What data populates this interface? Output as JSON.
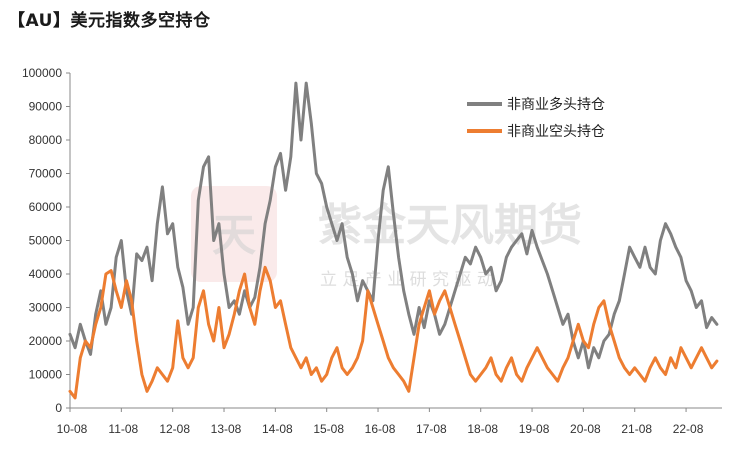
{
  "title": "【AU】美元指数多空持仓",
  "watermark": {
    "logo_text": "天",
    "company": "紫金天风期货",
    "slogan": "立 足 产 业   研 究 驱 动"
  },
  "colors": {
    "long": "#808080",
    "short": "#ED7D31",
    "axis": "#888888"
  },
  "chart_data": {
    "type": "line",
    "title": "【AU】美元指数多空持仓",
    "xlabel": "",
    "ylabel": "",
    "ylim": [
      0,
      100000
    ],
    "y_ticks": [
      0,
      10000,
      20000,
      30000,
      40000,
      50000,
      60000,
      70000,
      80000,
      90000,
      100000
    ],
    "x_ticks": [
      "10-08",
      "11-08",
      "12-08",
      "13-08",
      "14-08",
      "15-08",
      "16-08",
      "17-08",
      "18-08",
      "19-08",
      "20-08",
      "21-08",
      "22-08"
    ],
    "xlim": [
      2010.6,
      2023.3
    ],
    "grid": false,
    "legend_position": "top-right",
    "series": [
      {
        "name": "非商业多头持仓",
        "color": "#808080",
        "points": [
          [
            2010.6,
            22000
          ],
          [
            2010.7,
            18000
          ],
          [
            2010.8,
            25000
          ],
          [
            2010.9,
            20000
          ],
          [
            2011.0,
            16000
          ],
          [
            2011.1,
            28000
          ],
          [
            2011.2,
            35000
          ],
          [
            2011.3,
            25000
          ],
          [
            2011.4,
            30000
          ],
          [
            2011.5,
            45000
          ],
          [
            2011.6,
            50000
          ],
          [
            2011.7,
            35000
          ],
          [
            2011.8,
            28000
          ],
          [
            2011.9,
            46000
          ],
          [
            2012.0,
            44000
          ],
          [
            2012.1,
            48000
          ],
          [
            2012.2,
            38000
          ],
          [
            2012.3,
            55000
          ],
          [
            2012.4,
            66000
          ],
          [
            2012.5,
            52000
          ],
          [
            2012.6,
            55000
          ],
          [
            2012.7,
            42000
          ],
          [
            2012.8,
            36000
          ],
          [
            2012.9,
            25000
          ],
          [
            2013.0,
            30000
          ],
          [
            2013.1,
            62000
          ],
          [
            2013.2,
            72000
          ],
          [
            2013.3,
            75000
          ],
          [
            2013.4,
            50000
          ],
          [
            2013.5,
            55000
          ],
          [
            2013.6,
            40000
          ],
          [
            2013.7,
            30000
          ],
          [
            2013.8,
            32000
          ],
          [
            2013.9,
            28000
          ],
          [
            2014.0,
            35000
          ],
          [
            2014.1,
            30000
          ],
          [
            2014.2,
            33000
          ],
          [
            2014.3,
            42000
          ],
          [
            2014.4,
            55000
          ],
          [
            2014.5,
            62000
          ],
          [
            2014.6,
            72000
          ],
          [
            2014.7,
            76000
          ],
          [
            2014.8,
            65000
          ],
          [
            2014.9,
            75000
          ],
          [
            2015.0,
            97000
          ],
          [
            2015.1,
            80000
          ],
          [
            2015.2,
            97000
          ],
          [
            2015.3,
            85000
          ],
          [
            2015.4,
            70000
          ],
          [
            2015.5,
            67000
          ],
          [
            2015.6,
            60000
          ],
          [
            2015.7,
            55000
          ],
          [
            2015.8,
            50000
          ],
          [
            2015.9,
            55000
          ],
          [
            2016.0,
            45000
          ],
          [
            2016.1,
            40000
          ],
          [
            2016.2,
            32000
          ],
          [
            2016.3,
            38000
          ],
          [
            2016.4,
            35000
          ],
          [
            2016.5,
            32000
          ],
          [
            2016.6,
            50000
          ],
          [
            2016.7,
            65000
          ],
          [
            2016.8,
            72000
          ],
          [
            2016.9,
            58000
          ],
          [
            2017.0,
            45000
          ],
          [
            2017.1,
            35000
          ],
          [
            2017.2,
            28000
          ],
          [
            2017.3,
            22000
          ],
          [
            2017.4,
            30000
          ],
          [
            2017.5,
            24000
          ],
          [
            2017.6,
            32000
          ],
          [
            2017.7,
            28000
          ],
          [
            2017.8,
            22000
          ],
          [
            2017.9,
            25000
          ],
          [
            2018.0,
            30000
          ],
          [
            2018.1,
            35000
          ],
          [
            2018.2,
            40000
          ],
          [
            2018.3,
            45000
          ],
          [
            2018.4,
            43000
          ],
          [
            2018.5,
            48000
          ],
          [
            2018.6,
            45000
          ],
          [
            2018.7,
            40000
          ],
          [
            2018.8,
            42000
          ],
          [
            2018.9,
            35000
          ],
          [
            2019.0,
            38000
          ],
          [
            2019.1,
            45000
          ],
          [
            2019.2,
            48000
          ],
          [
            2019.3,
            50000
          ],
          [
            2019.4,
            52000
          ],
          [
            2019.5,
            46000
          ],
          [
            2019.6,
            53000
          ],
          [
            2019.7,
            48000
          ],
          [
            2019.8,
            44000
          ],
          [
            2019.9,
            40000
          ],
          [
            2020.0,
            35000
          ],
          [
            2020.1,
            30000
          ],
          [
            2020.2,
            25000
          ],
          [
            2020.3,
            28000
          ],
          [
            2020.4,
            20000
          ],
          [
            2020.5,
            15000
          ],
          [
            2020.6,
            20000
          ],
          [
            2020.7,
            12000
          ],
          [
            2020.8,
            18000
          ],
          [
            2020.9,
            15000
          ],
          [
            2021.0,
            20000
          ],
          [
            2021.1,
            22000
          ],
          [
            2021.2,
            28000
          ],
          [
            2021.3,
            32000
          ],
          [
            2021.4,
            40000
          ],
          [
            2021.5,
            48000
          ],
          [
            2021.6,
            45000
          ],
          [
            2021.7,
            42000
          ],
          [
            2021.8,
            48000
          ],
          [
            2021.9,
            42000
          ],
          [
            2022.0,
            40000
          ],
          [
            2022.1,
            50000
          ],
          [
            2022.2,
            55000
          ],
          [
            2022.3,
            52000
          ],
          [
            2022.4,
            48000
          ],
          [
            2022.5,
            45000
          ],
          [
            2022.6,
            38000
          ],
          [
            2022.7,
            35000
          ],
          [
            2022.8,
            30000
          ],
          [
            2022.9,
            32000
          ],
          [
            2023.0,
            24000
          ],
          [
            2023.1,
            27000
          ],
          [
            2023.2,
            25000
          ]
        ]
      },
      {
        "name": "非商业空头持仓",
        "color": "#ED7D31",
        "points": [
          [
            2010.6,
            5000
          ],
          [
            2010.7,
            3000
          ],
          [
            2010.8,
            15000
          ],
          [
            2010.9,
            20000
          ],
          [
            2011.0,
            18000
          ],
          [
            2011.1,
            25000
          ],
          [
            2011.2,
            30000
          ],
          [
            2011.3,
            40000
          ],
          [
            2011.4,
            41000
          ],
          [
            2011.5,
            35000
          ],
          [
            2011.6,
            30000
          ],
          [
            2011.7,
            38000
          ],
          [
            2011.8,
            32000
          ],
          [
            2011.9,
            20000
          ],
          [
            2012.0,
            10000
          ],
          [
            2012.1,
            5000
          ],
          [
            2012.2,
            8000
          ],
          [
            2012.3,
            12000
          ],
          [
            2012.4,
            10000
          ],
          [
            2012.5,
            8000
          ],
          [
            2012.6,
            12000
          ],
          [
            2012.7,
            26000
          ],
          [
            2012.8,
            15000
          ],
          [
            2012.9,
            12000
          ],
          [
            2013.0,
            15000
          ],
          [
            2013.1,
            30000
          ],
          [
            2013.2,
            35000
          ],
          [
            2013.3,
            25000
          ],
          [
            2013.4,
            20000
          ],
          [
            2013.5,
            30000
          ],
          [
            2013.6,
            18000
          ],
          [
            2013.7,
            22000
          ],
          [
            2013.8,
            28000
          ],
          [
            2013.9,
            35000
          ],
          [
            2014.0,
            40000
          ],
          [
            2014.1,
            30000
          ],
          [
            2014.2,
            25000
          ],
          [
            2014.3,
            35000
          ],
          [
            2014.4,
            42000
          ],
          [
            2014.5,
            38000
          ],
          [
            2014.6,
            30000
          ],
          [
            2014.7,
            32000
          ],
          [
            2014.8,
            25000
          ],
          [
            2014.9,
            18000
          ],
          [
            2015.0,
            15000
          ],
          [
            2015.1,
            12000
          ],
          [
            2015.2,
            15000
          ],
          [
            2015.3,
            10000
          ],
          [
            2015.4,
            12000
          ],
          [
            2015.5,
            8000
          ],
          [
            2015.6,
            10000
          ],
          [
            2015.7,
            15000
          ],
          [
            2015.8,
            18000
          ],
          [
            2015.9,
            12000
          ],
          [
            2016.0,
            10000
          ],
          [
            2016.1,
            12000
          ],
          [
            2016.2,
            15000
          ],
          [
            2016.3,
            20000
          ],
          [
            2016.4,
            35000
          ],
          [
            2016.5,
            30000
          ],
          [
            2016.6,
            25000
          ],
          [
            2016.7,
            20000
          ],
          [
            2016.8,
            15000
          ],
          [
            2016.9,
            12000
          ],
          [
            2017.0,
            10000
          ],
          [
            2017.1,
            8000
          ],
          [
            2017.2,
            5000
          ],
          [
            2017.3,
            15000
          ],
          [
            2017.4,
            25000
          ],
          [
            2017.5,
            30000
          ],
          [
            2017.6,
            35000
          ],
          [
            2017.7,
            28000
          ],
          [
            2017.8,
            32000
          ],
          [
            2017.9,
            35000
          ],
          [
            2018.0,
            30000
          ],
          [
            2018.1,
            25000
          ],
          [
            2018.2,
            20000
          ],
          [
            2018.3,
            15000
          ],
          [
            2018.4,
            10000
          ],
          [
            2018.5,
            8000
          ],
          [
            2018.6,
            10000
          ],
          [
            2018.7,
            12000
          ],
          [
            2018.8,
            15000
          ],
          [
            2018.9,
            10000
          ],
          [
            2019.0,
            8000
          ],
          [
            2019.1,
            12000
          ],
          [
            2019.2,
            15000
          ],
          [
            2019.3,
            10000
          ],
          [
            2019.4,
            8000
          ],
          [
            2019.5,
            12000
          ],
          [
            2019.6,
            15000
          ],
          [
            2019.7,
            18000
          ],
          [
            2019.8,
            15000
          ],
          [
            2019.9,
            12000
          ],
          [
            2020.0,
            10000
          ],
          [
            2020.1,
            8000
          ],
          [
            2020.2,
            12000
          ],
          [
            2020.3,
            15000
          ],
          [
            2020.4,
            20000
          ],
          [
            2020.5,
            25000
          ],
          [
            2020.6,
            20000
          ],
          [
            2020.7,
            18000
          ],
          [
            2020.8,
            25000
          ],
          [
            2020.9,
            30000
          ],
          [
            2021.0,
            32000
          ],
          [
            2021.1,
            25000
          ],
          [
            2021.2,
            20000
          ],
          [
            2021.3,
            15000
          ],
          [
            2021.4,
            12000
          ],
          [
            2021.5,
            10000
          ],
          [
            2021.6,
            12000
          ],
          [
            2021.7,
            10000
          ],
          [
            2021.8,
            8000
          ],
          [
            2021.9,
            12000
          ],
          [
            2022.0,
            15000
          ],
          [
            2022.1,
            12000
          ],
          [
            2022.2,
            10000
          ],
          [
            2022.3,
            15000
          ],
          [
            2022.4,
            12000
          ],
          [
            2022.5,
            18000
          ],
          [
            2022.6,
            15000
          ],
          [
            2022.7,
            12000
          ],
          [
            2022.8,
            15000
          ],
          [
            2022.9,
            18000
          ],
          [
            2023.0,
            15000
          ],
          [
            2023.1,
            12000
          ],
          [
            2023.2,
            14000
          ]
        ]
      }
    ]
  }
}
